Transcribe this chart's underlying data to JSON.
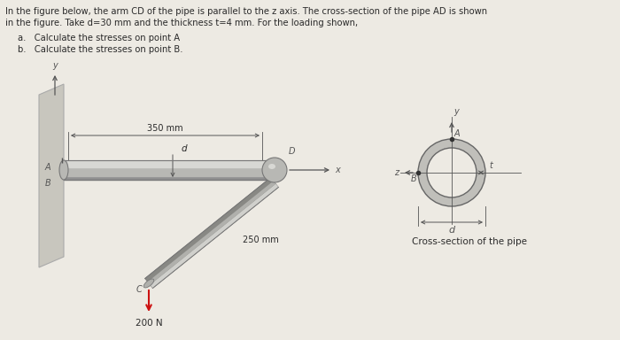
{
  "bg_color": "#edeae3",
  "text_color": "#2a2a2a",
  "title_line1": "In the figure below, the arm CD of the pipe is parallel to the z axis. The cross-section of the pipe AD is shown",
  "title_line2": "in the figure. Take d=30 mm and the thickness t=4 mm. For the loading shown,",
  "sub_a": "a.   Calculate the stresses on point A",
  "sub_b": "b.   Calculate the stresses on point B.",
  "dim_350": "350 mm",
  "dim_250": "250 mm",
  "dim_d": "d",
  "force_label": "200 N",
  "cross_label": "Cross-section of the pipe",
  "label_A": "A",
  "label_B": "B",
  "label_C": "C",
  "label_D": "D",
  "label_x": "x",
  "label_y": "y",
  "label_z": "z",
  "label_t": "t",
  "pipe_highlight": "#d8d8d4",
  "pipe_mid": "#b8b8b4",
  "pipe_shadow": "#909090",
  "pipe_edge": "#777777",
  "wall_face": "#c8c6be",
  "wall_light": "#d8d6ce",
  "wall_edge": "#aaaaaa",
  "arm_highlight": "#d0d0cc",
  "arm_mid": "#b0b0ac",
  "arm_shadow": "#888884",
  "force_color": "#cc1111",
  "annot_color": "#555555",
  "line_color": "#666666"
}
